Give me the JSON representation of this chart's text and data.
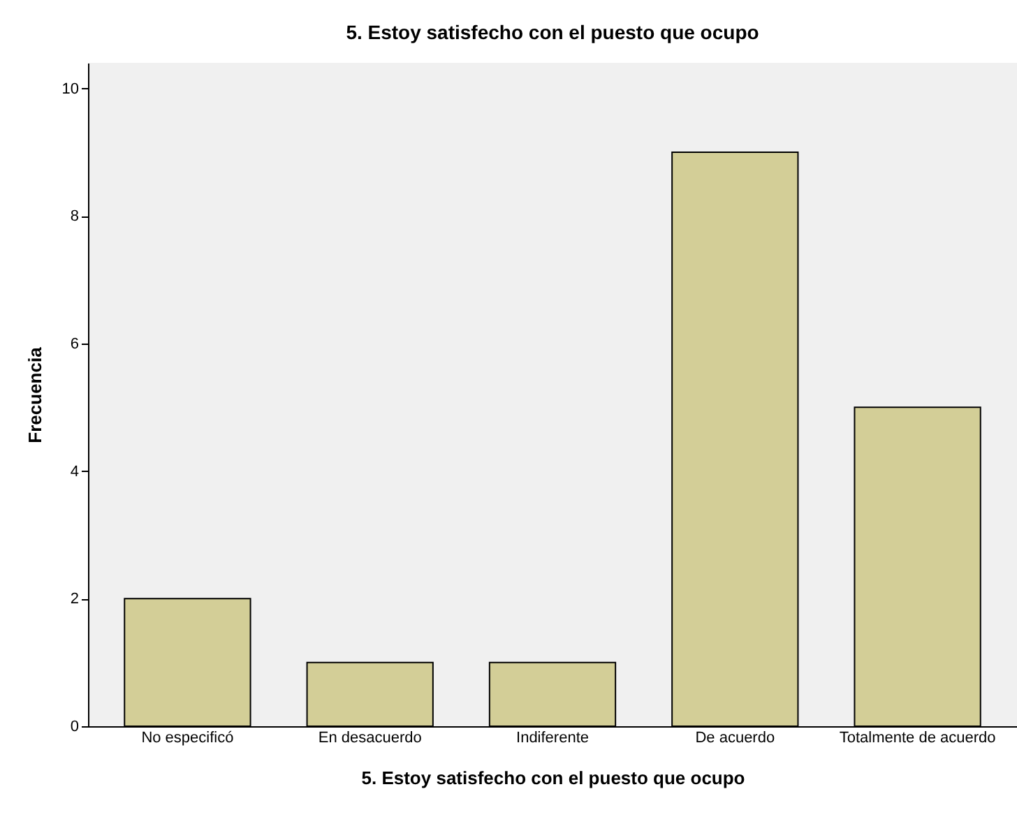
{
  "chart_data": {
    "type": "bar",
    "title": "5. Estoy satisfecho con el puesto que ocupo",
    "xlabel": "5. Estoy satisfecho con el puesto que ocupo",
    "ylabel": "Frecuencia",
    "categories": [
      "No especificó",
      "En desacuerdo",
      "Indiferente",
      "De acuerdo",
      "Totalmente de acuerdo"
    ],
    "values": [
      2,
      1,
      1,
      9,
      5
    ],
    "color": "#d3ce97",
    "ylim": [
      0,
      10.4
    ],
    "yticks": [
      0,
      2,
      4,
      6,
      8,
      10
    ],
    "grid": false
  }
}
